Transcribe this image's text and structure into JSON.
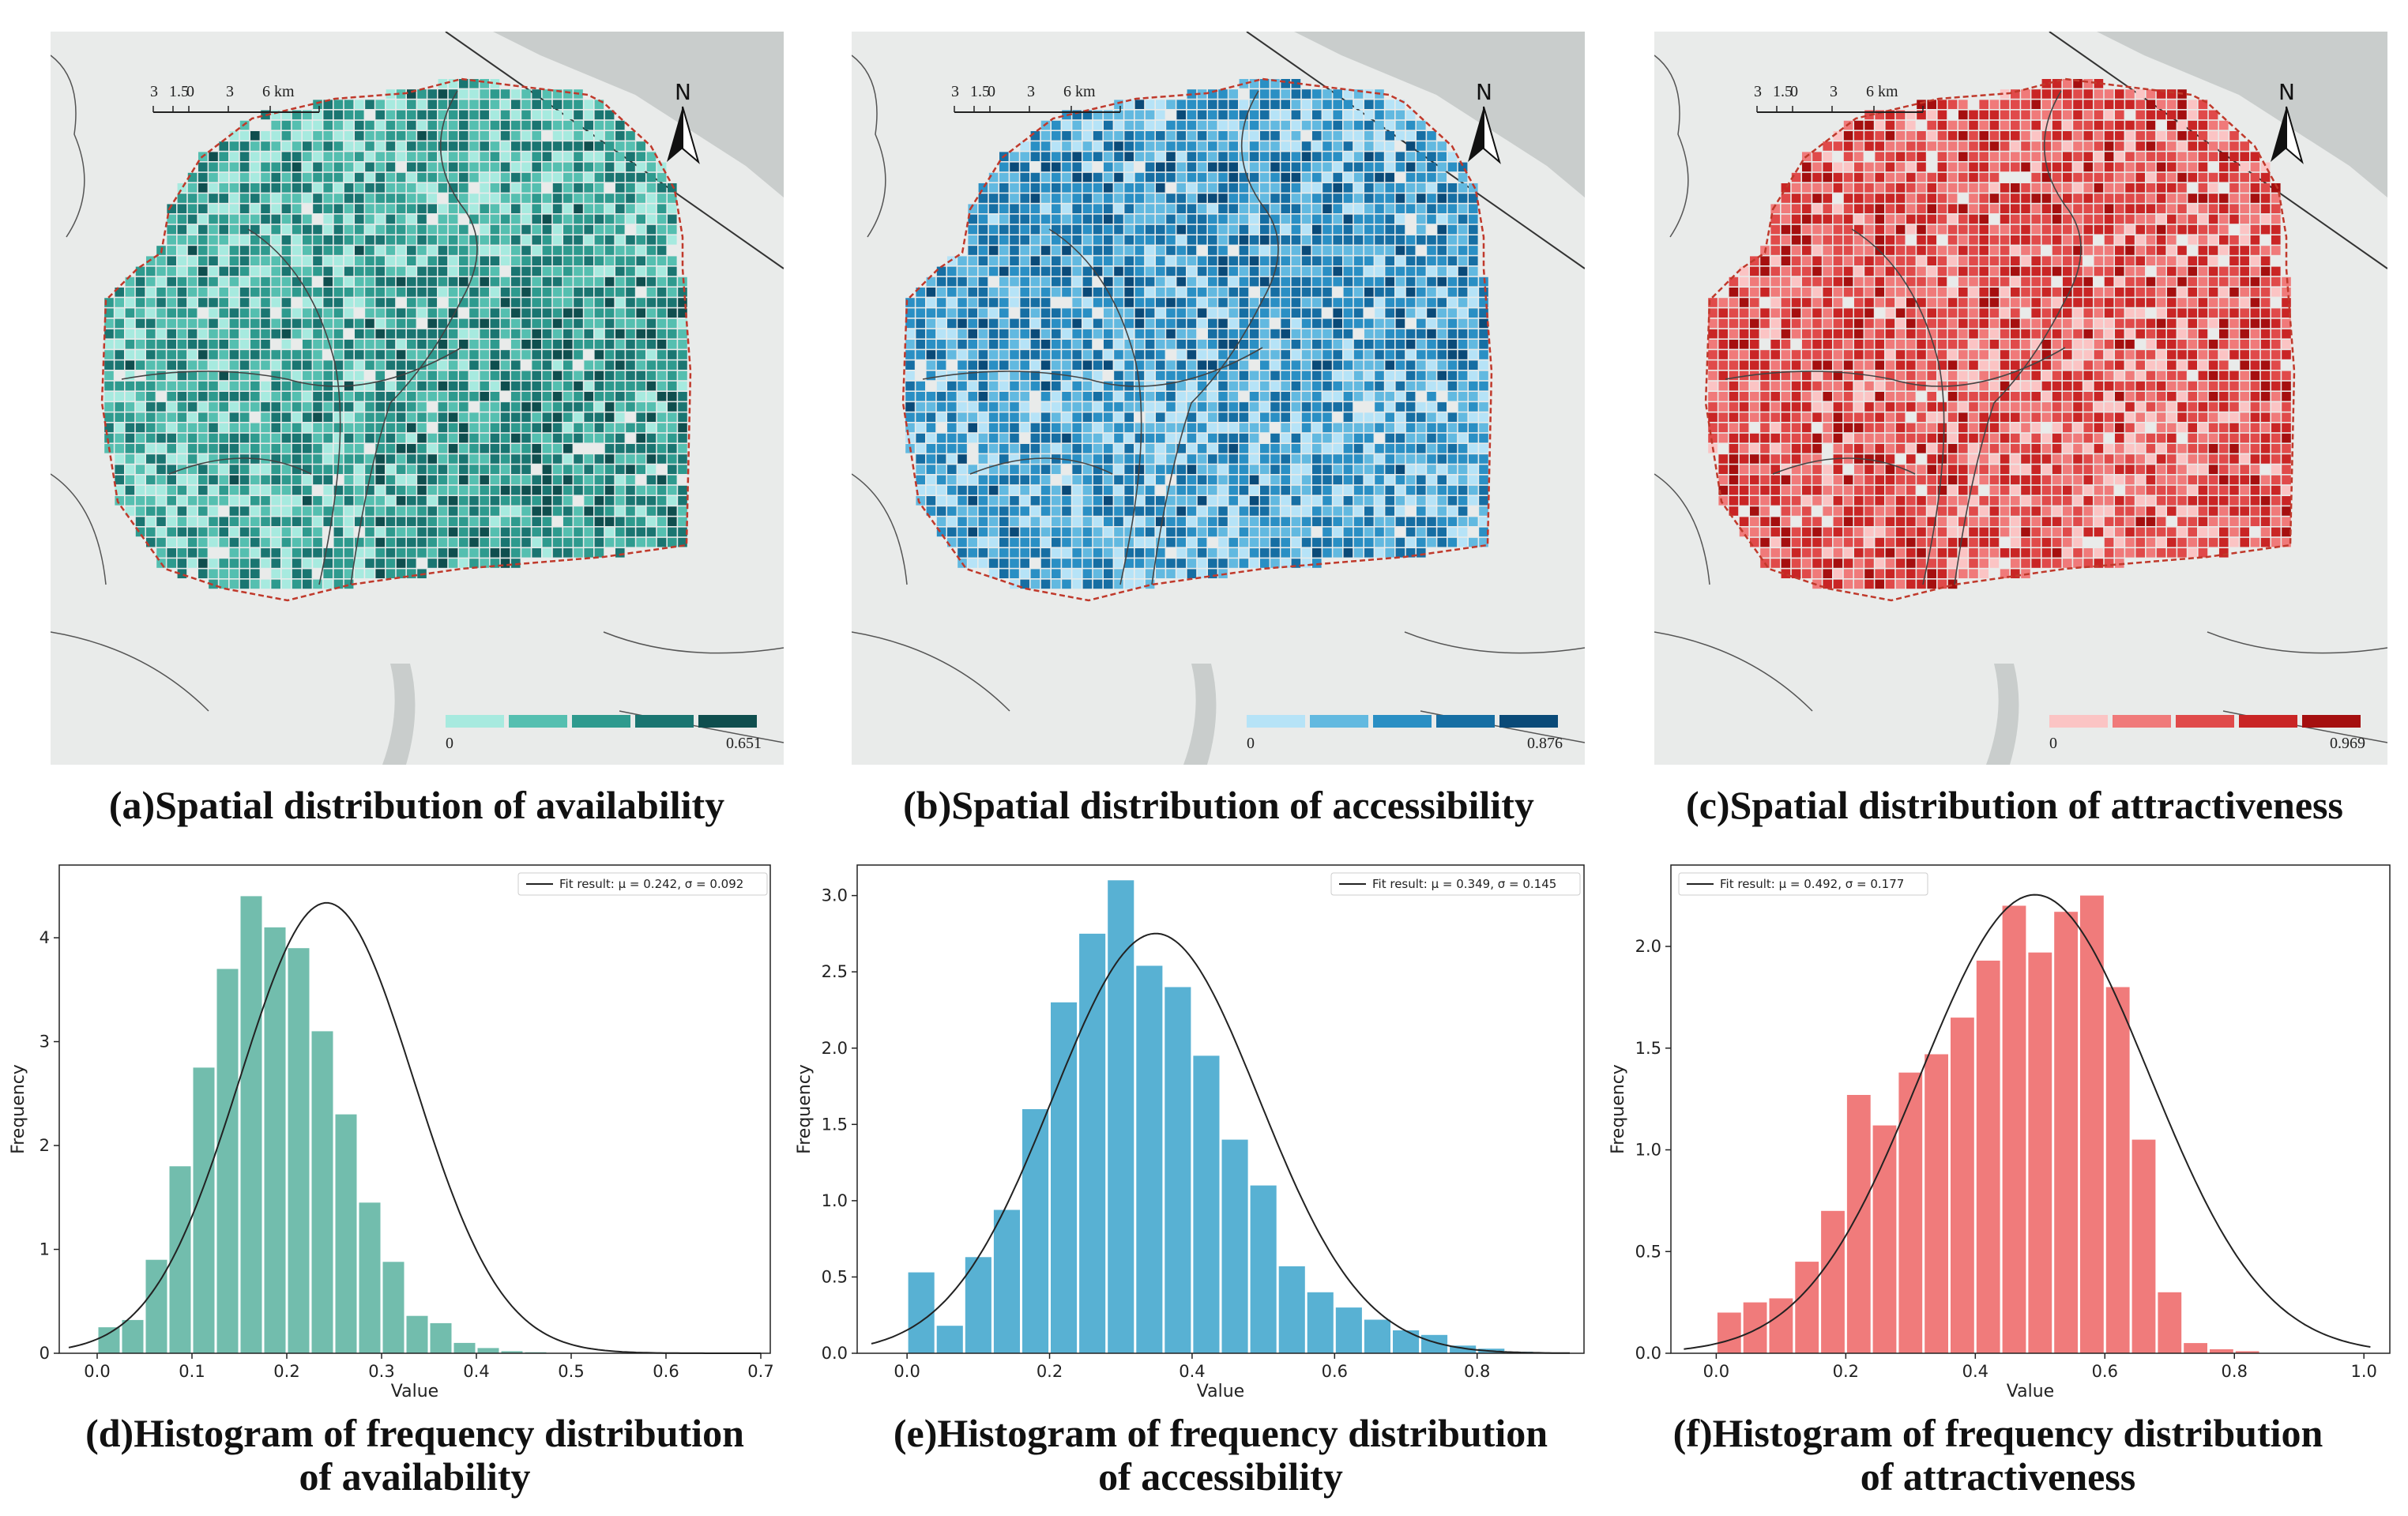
{
  "maps": [
    {
      "id": "a",
      "caption": "(a)Spatial distribution of availability",
      "legend_min": "0",
      "legend_max": "0.651",
      "palette": [
        "#a7eadf",
        "#55bfb0",
        "#2e9a8e",
        "#1a7571",
        "#0f4e4e"
      ],
      "scale_labels": [
        "3",
        "1.5",
        "0",
        "3",
        "6 km"
      ],
      "north": "N"
    },
    {
      "id": "b",
      "caption": "(b)Spatial distribution of accessibility",
      "legend_min": "0",
      "legend_max": "0.876",
      "palette": [
        "#b6e3f7",
        "#62b9e0",
        "#2a8fc4",
        "#166ea3",
        "#0a4a78"
      ],
      "scale_labels": [
        "3",
        "1.5",
        "0",
        "3",
        "6 km"
      ],
      "north": "N"
    },
    {
      "id": "c",
      "caption": "(c)Spatial distribution of attractiveness",
      "legend_min": "0",
      "legend_max": "0.969",
      "palette": [
        "#fbc4c4",
        "#f07a7a",
        "#e04a4a",
        "#c92525",
        "#a50f0f"
      ],
      "scale_labels": [
        "3",
        "1.5",
        "0",
        "3",
        "6 km"
      ],
      "north": "N"
    }
  ],
  "chart_data": [
    {
      "type": "bar",
      "id": "d",
      "caption_line1": "(d)Histogram of frequency distribution",
      "caption_line2": "of availability",
      "xlabel": "Value",
      "ylabel": "Frequency",
      "bar_color": "#72bdad",
      "bin_width": 0.025,
      "bin_start": 0.0,
      "values": [
        0.25,
        0.32,
        0.9,
        1.8,
        2.75,
        3.7,
        4.4,
        4.1,
        3.9,
        3.1,
        2.3,
        1.45,
        0.88,
        0.36,
        0.29,
        0.1,
        0.05,
        0.02,
        0.01
      ],
      "xlim": [
        -0.04,
        0.71
      ],
      "ylim": [
        0,
        4.7
      ],
      "xticks": [
        0.0,
        0.1,
        0.2,
        0.3,
        0.4,
        0.5,
        0.6,
        0.7
      ],
      "xtick_labels": [
        "0.0",
        "0.1",
        "0.2",
        "0.3",
        "0.4",
        "0.5",
        "0.6",
        "0.7"
      ],
      "yticks": [
        0,
        1,
        2,
        3,
        4
      ],
      "ytick_labels": [
        "0",
        "1",
        "2",
        "3",
        "4"
      ],
      "fit": {
        "mu": 0.242,
        "sigma": 0.092,
        "x_from": -0.03,
        "x_to": 0.7
      },
      "legend_label": "Fit result: μ = 0.242, σ = 0.092"
    },
    {
      "type": "bar",
      "id": "e",
      "caption_line1": "(e)Histogram of frequency distribution",
      "caption_line2": "of accessibility",
      "xlabel": "Value",
      "ylabel": "Frequency",
      "bar_color": "#58b1d3",
      "bin_width": 0.04,
      "bin_start": 0.0,
      "values": [
        0.53,
        0.18,
        0.63,
        0.94,
        1.6,
        2.3,
        2.75,
        3.1,
        2.54,
        2.4,
        1.95,
        1.4,
        1.1,
        0.57,
        0.4,
        0.3,
        0.22,
        0.15,
        0.12,
        0.05,
        0.03,
        0.01
      ],
      "xlim": [
        -0.07,
        0.95
      ],
      "ylim": [
        0,
        3.2
      ],
      "xticks": [
        0.0,
        0.2,
        0.4,
        0.6,
        0.8
      ],
      "xtick_labels": [
        "0.0",
        "0.2",
        "0.4",
        "0.6",
        "0.8"
      ],
      "yticks": [
        0.0,
        0.5,
        1.0,
        1.5,
        2.0,
        2.5,
        3.0
      ],
      "ytick_labels": [
        "0.0",
        "0.5",
        "1.0",
        "1.5",
        "2.0",
        "2.5",
        "3.0"
      ],
      "fit": {
        "mu": 0.349,
        "sigma": 0.145,
        "x_from": -0.05,
        "x_to": 0.93
      },
      "legend_label": "Fit result: μ = 0.349, σ = 0.145"
    },
    {
      "type": "bar",
      "id": "f",
      "caption_line1": "(f)Histogram of frequency distribution",
      "caption_line2": "of attractiveness",
      "xlabel": "Value",
      "ylabel": "Frequency",
      "bar_color": "#f07b7b",
      "bin_width": 0.04,
      "bin_start": 0.0,
      "values": [
        0.2,
        0.25,
        0.27,
        0.45,
        0.7,
        1.27,
        1.12,
        1.38,
        1.47,
        1.65,
        1.93,
        2.2,
        1.97,
        2.17,
        2.25,
        1.8,
        1.05,
        0.3,
        0.05,
        0.02,
        0.01
      ],
      "xlim": [
        -0.07,
        1.04
      ],
      "ylim": [
        0,
        2.4
      ],
      "xticks": [
        0.0,
        0.2,
        0.4,
        0.6,
        0.8,
        1.0
      ],
      "xtick_labels": [
        "0.0",
        "0.2",
        "0.4",
        "0.6",
        "0.8",
        "1.0"
      ],
      "yticks": [
        0.0,
        0.5,
        1.0,
        1.5,
        2.0
      ],
      "ytick_labels": [
        "0.0",
        "0.5",
        "1.0",
        "1.5",
        "2.0"
      ],
      "fit": {
        "mu": 0.492,
        "sigma": 0.177,
        "x_from": -0.05,
        "x_to": 1.01
      },
      "legend_label": "Fit result: μ = 0.492, σ = 0.177"
    }
  ]
}
